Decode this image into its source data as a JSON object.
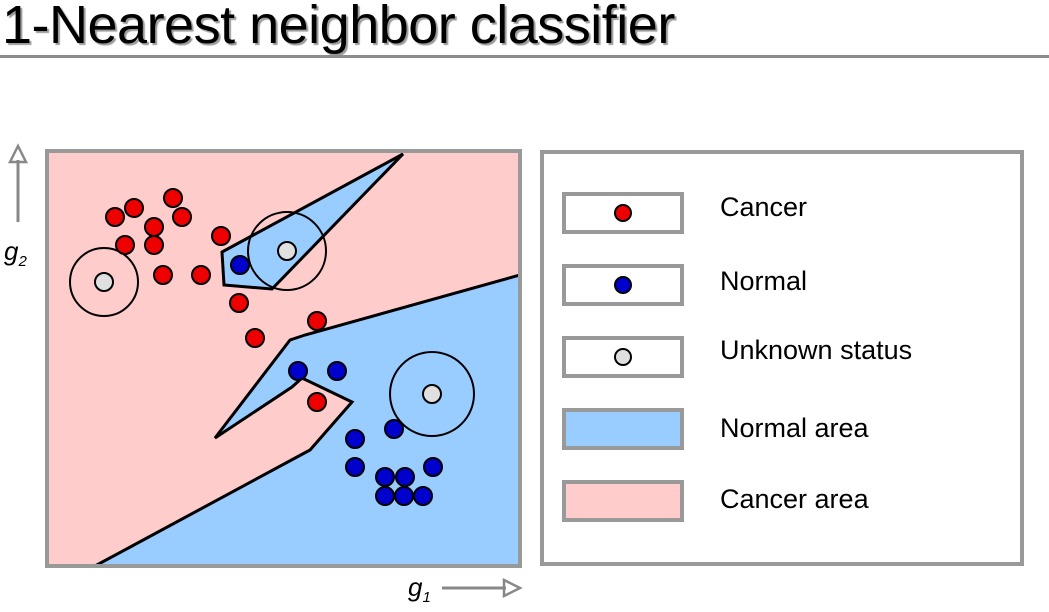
{
  "title": "1-Nearest neighbor classifier",
  "axes": {
    "y_label": "g",
    "y_sub": "2",
    "x_label": "g",
    "x_sub": "1"
  },
  "colors": {
    "cancer_point": "#ee0000",
    "normal_point": "#0000cc",
    "unknown_point": "#e0e0e0",
    "normal_area": "#99ccff",
    "cancer_area": "#ffcccc",
    "frame": "#999999"
  },
  "legend": [
    {
      "kind": "dot",
      "color": "#ee0000",
      "label": "Cancer"
    },
    {
      "kind": "dot",
      "color": "#0000cc",
      "label": "Normal"
    },
    {
      "kind": "dot",
      "color": "#e0e0e0",
      "label": "Unknown status"
    },
    {
      "kind": "area",
      "color": "#99ccff",
      "label": "Normal area"
    },
    {
      "kind": "area",
      "color": "#ffcccc",
      "label": "Cancer area"
    }
  ]
}
